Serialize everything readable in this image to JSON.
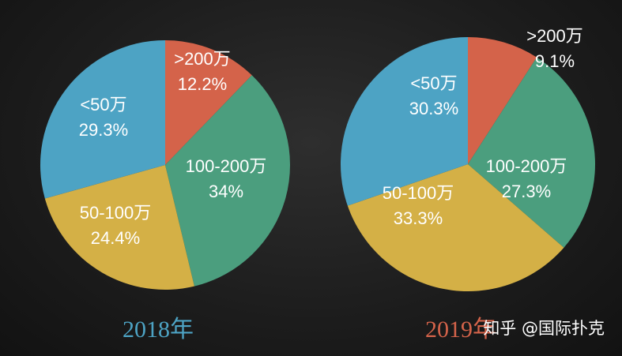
{
  "colors": {
    "lt50": "#4da3c4",
    "gt200": "#d4634a",
    "r100_200": "#4b9e7e",
    "r50_100": "#d4b046",
    "year2018": "#4da3c4",
    "year2019": "#d4634a",
    "slice_text": "#ffffff"
  },
  "chart_data": [
    {
      "type": "pie",
      "title": "2018年",
      "slices": [
        {
          "key": "gt200",
          "label": ">200万",
          "value": 12.2,
          "display": "12.2%",
          "color": "#d4634a"
        },
        {
          "key": "r100_200",
          "label": "100-200万",
          "value": 34,
          "display": "34%",
          "color": "#4b9e7e"
        },
        {
          "key": "r50_100",
          "label": "50-100万",
          "value": 24.4,
          "display": "24.4%",
          "color": "#d4b046"
        },
        {
          "key": "lt50",
          "label": "<50万",
          "value": 29.3,
          "display": "29.3%",
          "color": "#4da3c4"
        }
      ]
    },
    {
      "type": "pie",
      "title": "2019年",
      "slices": [
        {
          "key": "gt200",
          "label": ">200万",
          "value": 9.1,
          "display": "9.1%",
          "color": "#d4634a"
        },
        {
          "key": "r100_200",
          "label": "100-200万",
          "value": 27.3,
          "display": "27.3%",
          "color": "#4b9e7e"
        },
        {
          "key": "r50_100",
          "label": "50-100万",
          "value": 33.3,
          "display": "33.3%",
          "color": "#d4b046"
        },
        {
          "key": "lt50",
          "label": "<50万",
          "value": 30.3,
          "display": "30.3%",
          "color": "#4da3c4"
        }
      ]
    }
  ],
  "years": {
    "y2018": "2018年",
    "y2019": "2019年"
  },
  "watermark": "知乎 @国际扑克"
}
